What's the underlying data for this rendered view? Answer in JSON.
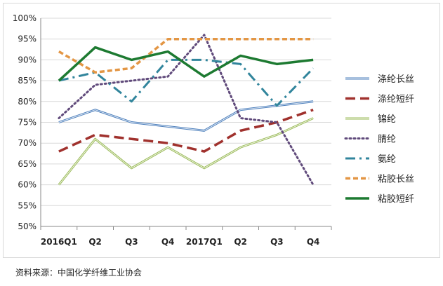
{
  "chart_data": {
    "type": "line",
    "title": "",
    "xlabel": "",
    "ylabel": "",
    "categories": [
      "2016Q1",
      "Q2",
      "Q3",
      "Q4",
      "2017Q1",
      "Q2",
      "Q3",
      "Q4"
    ],
    "y_ticks": [
      "50%",
      "55%",
      "60%",
      "65%",
      "70%",
      "75%",
      "80%",
      "85%",
      "90%",
      "95%",
      "100%"
    ],
    "ylim": [
      50,
      100
    ],
    "grid": "horizontal",
    "legend_position": "right",
    "series": [
      {
        "name": "涤纶长丝",
        "values": [
          75,
          78,
          75,
          74,
          73,
          78,
          79,
          80
        ],
        "color": "#4f81bd",
        "style": "solid-double"
      },
      {
        "name": "涤纶短纤",
        "values": [
          68,
          72,
          71,
          70,
          68,
          73,
          75,
          78
        ],
        "color": "#a0312d",
        "style": "dash"
      },
      {
        "name": "锦纶",
        "values": [
          60,
          71,
          64,
          69,
          64,
          69,
          72,
          76
        ],
        "color": "#9bbb59",
        "style": "solid-double"
      },
      {
        "name": "腈纶",
        "values": [
          76,
          84,
          85,
          86,
          96,
          76,
          75,
          60
        ],
        "color": "#604a7b",
        "style": "dot"
      },
      {
        "name": "氨纶",
        "values": [
          85,
          87,
          80,
          90,
          90,
          89,
          79,
          88
        ],
        "color": "#31859c",
        "style": "dashdot"
      },
      {
        "name": "粘胶长丝",
        "values": [
          92,
          87,
          88,
          95,
          95,
          95,
          95,
          95
        ],
        "color": "#e39644",
        "style": "dash-orange"
      },
      {
        "name": "粘胶短纤",
        "values": [
          85,
          93,
          90,
          92,
          86,
          91,
          89,
          90
        ],
        "color": "#1d7a31",
        "style": "solid"
      }
    ]
  },
  "source_note": "资料来源：中国化学纤维工业协会"
}
